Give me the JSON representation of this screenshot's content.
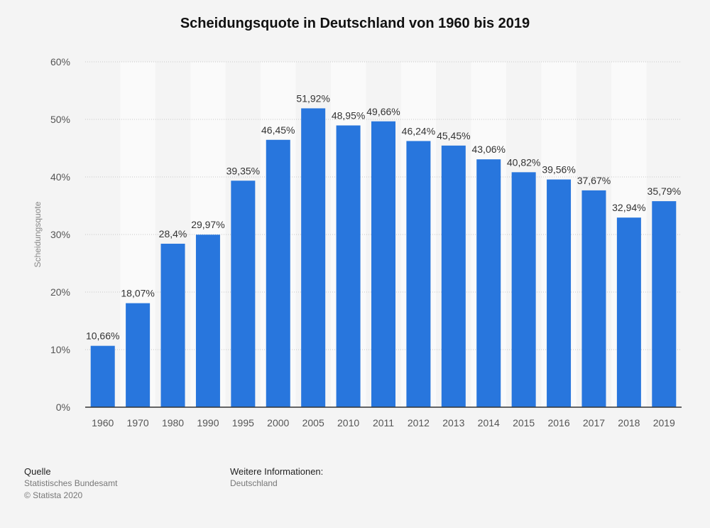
{
  "chart_data": {
    "type": "bar",
    "title": "Scheidungsquote in Deutschland von 1960 bis 2019",
    "xlabel": "",
    "ylabel": "Scheidungsquote",
    "ylim": [
      0,
      60
    ],
    "yticks": [
      "0%",
      "10%",
      "20%",
      "30%",
      "40%",
      "50%",
      "60%"
    ],
    "categories": [
      "1960",
      "1970",
      "1980",
      "1990",
      "1995",
      "2000",
      "2005",
      "2010",
      "2011",
      "2012",
      "2013",
      "2014",
      "2015",
      "2016",
      "2017",
      "2018",
      "2019"
    ],
    "values": [
      10.66,
      18.07,
      28.4,
      29.97,
      39.35,
      46.45,
      51.92,
      48.95,
      49.66,
      46.24,
      45.45,
      43.06,
      40.82,
      39.56,
      37.67,
      32.94,
      35.79
    ],
    "data_labels": [
      "10,66%",
      "18,07%",
      "28,4%",
      "29,97%",
      "39,35%",
      "46,45%",
      "51,92%",
      "48,95%",
      "49,66%",
      "46,24%",
      "45,45%",
      "43,06%",
      "40,82%",
      "39,56%",
      "37,67%",
      "32,94%",
      "35,79%"
    ],
    "grid": true,
    "bar_color": "#2876dd",
    "alt_band_color": "#fafafa"
  },
  "footer": {
    "source_heading": "Quelle",
    "source_line1": "Statistisches Bundesamt",
    "source_line2": "© Statista 2020",
    "info_heading": "Weitere Informationen:",
    "info_line1": "Deutschland"
  }
}
